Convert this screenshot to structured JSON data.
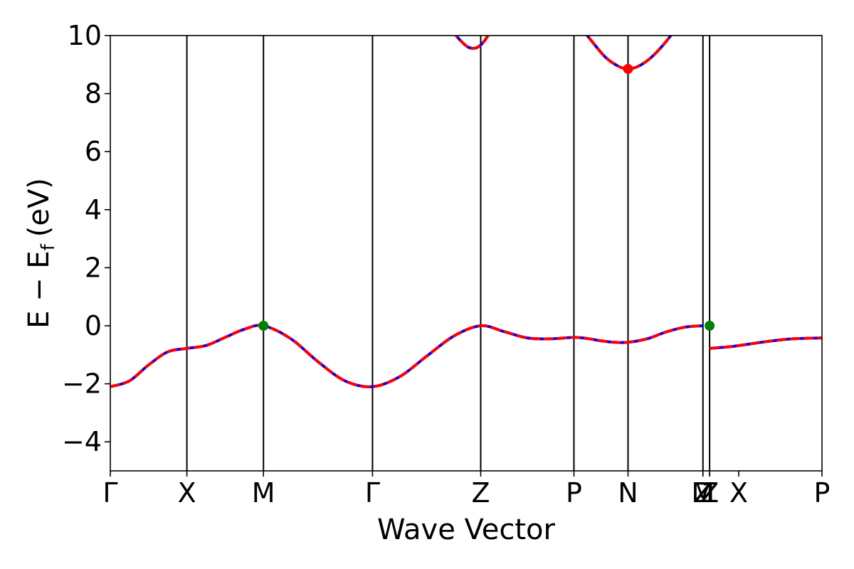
{
  "chart_data": {
    "type": "line",
    "xlabel": "Wave Vector",
    "ylabel": "E − E",
    "ylabel_subscript": "f",
    "ylabel_unit": "(eV)",
    "ylim": [
      -5,
      10
    ],
    "yticks": [
      -4,
      -2,
      0,
      2,
      4,
      6,
      8,
      10
    ],
    "yticks_labels": [
      "−4",
      "−2",
      "0",
      "2",
      "4",
      "6",
      "8",
      "10"
    ],
    "xlim": [
      0,
      8.55
    ],
    "grid": false,
    "kpoints": [
      {
        "label": "Γ",
        "x": 0.0
      },
      {
        "label": "X",
        "x": 0.92
      },
      {
        "label": "M",
        "x": 1.84
      },
      {
        "label": "Γ",
        "x": 3.15
      },
      {
        "label": "Z",
        "x": 4.45
      },
      {
        "label": "P",
        "x": 5.57
      },
      {
        "label": "N",
        "x": 6.22
      },
      {
        "label": "M",
        "x": 7.12
      },
      {
        "label": "Z",
        "x": 7.12
      },
      {
        "label": "Z",
        "x": 7.2
      },
      {
        "label": "1",
        "x": 7.2
      },
      {
        "label": "X",
        "x": 7.55
      },
      {
        "label": "P",
        "x": 8.55
      }
    ],
    "vlines_x": [
      0.92,
      1.84,
      3.15,
      4.45,
      5.57,
      6.22,
      7.12,
      7.2
    ],
    "series": [
      {
        "band": "valence",
        "color_solid": "#0000ff",
        "color_dashed": "#ff0000",
        "segments": [
          {
            "x": [
              0.0,
              0.23,
              0.46,
              0.69,
              0.92,
              1.15,
              1.38,
              1.61,
              1.84,
              2.17,
              2.5,
              2.82,
              3.15,
              3.48,
              3.8,
              4.13,
              4.45,
              4.73,
              5.01,
              5.29,
              5.57,
              5.73,
              5.9,
              6.06,
              6.22,
              6.45,
              6.67,
              6.9,
              7.12
            ],
            "y": [
              -2.1,
              -1.9,
              -1.35,
              -0.9,
              -0.78,
              -0.68,
              -0.4,
              -0.12,
              0.0,
              -0.45,
              -1.25,
              -1.9,
              -2.1,
              -1.75,
              -1.05,
              -0.35,
              0.0,
              -0.2,
              -0.42,
              -0.45,
              -0.4,
              -0.44,
              -0.52,
              -0.57,
              -0.57,
              -0.45,
              -0.22,
              -0.05,
              0.0
            ]
          },
          {
            "x": [
              7.2,
              7.45,
              7.7,
              7.95,
              8.2,
              8.55
            ],
            "y": [
              -0.78,
              -0.72,
              -0.62,
              -0.52,
              -0.45,
              -0.42
            ]
          }
        ]
      },
      {
        "band": "conduction",
        "color_solid": "#0000ff",
        "color_dashed": "#ff0000",
        "segments": [
          {
            "x": [
              4.1,
              4.2,
              4.3,
              4.4,
              4.49,
              4.58
            ],
            "y": [
              10.2,
              9.85,
              9.6,
              9.58,
              9.8,
              10.2
            ]
          },
          {
            "x": [
              5.65,
              5.8,
              5.95,
              6.1,
              6.22,
              6.35,
              6.5,
              6.65,
              6.8
            ],
            "y": [
              10.3,
              9.75,
              9.25,
              8.95,
              8.85,
              8.95,
              9.25,
              9.7,
              10.25
            ]
          }
        ]
      }
    ],
    "markers": [
      {
        "x": 1.84,
        "y": 0.0,
        "color": "#008000"
      },
      {
        "x": 7.2,
        "y": 0.0,
        "color": "#008000"
      },
      {
        "x": 6.22,
        "y": 8.85,
        "color": "#ff0000"
      }
    ]
  }
}
